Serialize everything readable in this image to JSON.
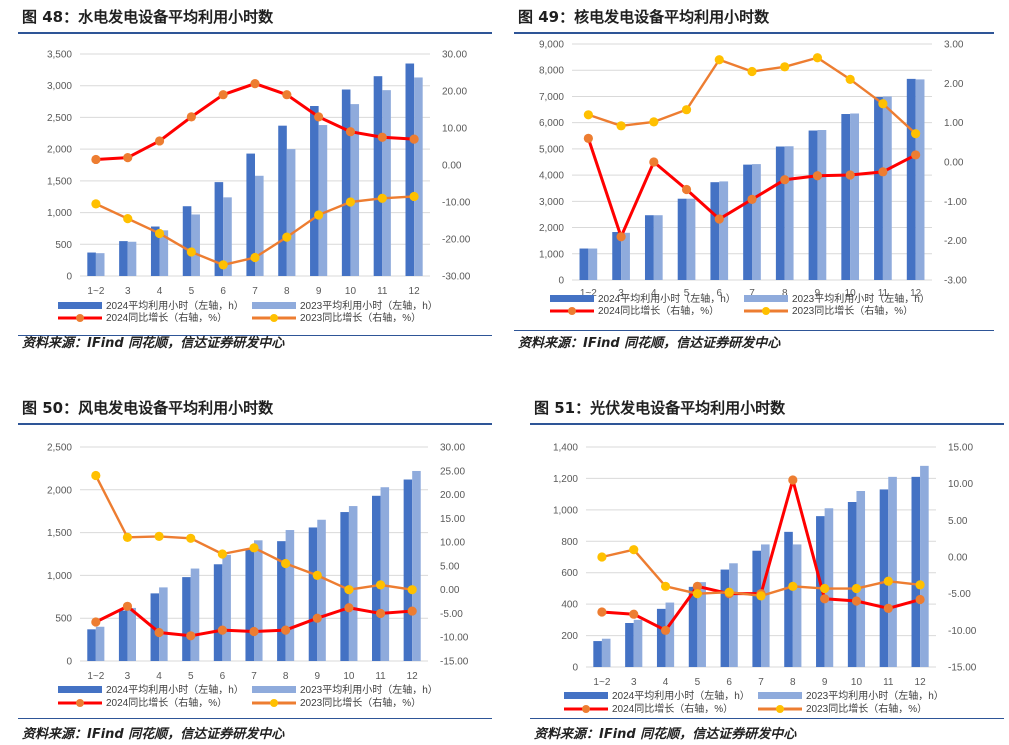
{
  "figures": [
    {
      "title": "图 48：水电发电设备平均利用小时数",
      "source": "资料来源：IFind 同花顺，信达证券研发中心"
    },
    {
      "title": "图 49：核电发电设备平均利用小时数",
      "source": "资料来源：IFind 同花顺，信达证券研发中心"
    },
    {
      "title": "图 50：风电发电设备平均利用小时数",
      "source": "资料来源：IFind 同花顺，信达证券研发中心"
    },
    {
      "title": "图 51：光伏发电设备平均利用小时数",
      "source": "资料来源：IFind 同花顺，信达证券研发中心"
    }
  ],
  "colors": {
    "bar2024": "#4472c4",
    "bar2023": "#8fabdc",
    "line2024": "#ff0000",
    "line2024_marker": "#ed7d31",
    "line2023": "#ed7d31",
    "line2023_marker": "#ffc000"
  },
  "chart_data": [
    {
      "type": "bar",
      "categories": [
        "1~2",
        "3",
        "4",
        "5",
        "6",
        "7",
        "8",
        "9",
        "10",
        "11",
        "12"
      ],
      "series": [
        {
          "name": "2024平均利用小时（左轴，h）",
          "kind": "bar",
          "axis": "left",
          "values": [
            370,
            550,
            780,
            1100,
            1480,
            1930,
            2370,
            2680,
            2940,
            3150,
            3350
          ]
        },
        {
          "name": "2023平均利用小时（左轴，h）",
          "kind": "bar",
          "axis": "left",
          "values": [
            360,
            540,
            720,
            970,
            1240,
            1580,
            2000,
            2380,
            2710,
            2930,
            3130
          ]
        },
        {
          "name": "2024同比增长（右轴，%）",
          "kind": "line",
          "axis": "right",
          "values": [
            1.5,
            2.0,
            6.5,
            13.0,
            19.0,
            22.0,
            19.0,
            13.0,
            9.0,
            7.5,
            7.0
          ]
        },
        {
          "name": "2023同比增长（右轴，%）",
          "kind": "line",
          "axis": "right",
          "values": [
            -10.5,
            -14.5,
            -18.5,
            -23.5,
            -27.0,
            -25.0,
            -19.5,
            -13.5,
            -10.0,
            -9.0,
            -8.5
          ]
        }
      ],
      "yleft": {
        "min": 0,
        "max": 3500,
        "step": 500,
        "labels": [
          "0",
          "500",
          "1,000",
          "1,500",
          "2,000",
          "2,500",
          "3,000",
          "3,500"
        ]
      },
      "yright": {
        "min": -30,
        "max": 30,
        "step": 10,
        "labels": [
          "-30.00",
          "-20.00",
          "-10.00",
          "0.00",
          "10.00",
          "20.00",
          "30.00"
        ]
      }
    },
    {
      "type": "bar",
      "categories": [
        "1~2",
        "3",
        "4",
        "5",
        "6",
        "7",
        "8",
        "9",
        "10",
        "11",
        "12"
      ],
      "series": [
        {
          "name": "2024平均利用小时（左轴，h）",
          "kind": "bar",
          "axis": "left",
          "values": [
            1200,
            1830,
            2470,
            3100,
            3730,
            4400,
            5090,
            5700,
            6330,
            6980,
            7670
          ]
        },
        {
          "name": "2023平均利用小时（左轴，h）",
          "kind": "bar",
          "axis": "left",
          "values": [
            1200,
            1800,
            2470,
            3100,
            3760,
            4420,
            5100,
            5720,
            6350,
            7000,
            7650
          ]
        },
        {
          "name": "2024同比增长（右轴，%）",
          "kind": "line",
          "axis": "right",
          "values": [
            0.6,
            -1.9,
            0.0,
            -0.7,
            -1.45,
            -0.95,
            -0.45,
            -0.35,
            -0.33,
            -0.25,
            0.18
          ]
        },
        {
          "name": "2023同比增长（右轴，%）",
          "kind": "line",
          "axis": "right",
          "values": [
            1.2,
            0.92,
            1.02,
            1.33,
            2.6,
            2.3,
            2.42,
            2.65,
            2.1,
            1.48,
            0.72
          ]
        }
      ],
      "yleft": {
        "min": 0,
        "max": 9000,
        "step": 1000,
        "labels": [
          "0",
          "1,000",
          "2,000",
          "3,000",
          "4,000",
          "5,000",
          "6,000",
          "7,000",
          "8,000",
          "9,000"
        ]
      },
      "yright": {
        "min": -3,
        "max": 3,
        "step": 1,
        "labels": [
          "-3.00",
          "-2.00",
          "-1.00",
          "0.00",
          "1.00",
          "2.00",
          "3.00"
        ]
      }
    },
    {
      "type": "bar",
      "categories": [
        "1~2",
        "3",
        "4",
        "5",
        "6",
        "7",
        "8",
        "9",
        "10",
        "11",
        "12"
      ],
      "series": [
        {
          "name": "2024平均利用小时（左轴，h）",
          "kind": "bar",
          "axis": "left",
          "values": [
            370,
            590,
            790,
            980,
            1130,
            1300,
            1400,
            1560,
            1740,
            1930,
            2120
          ]
        },
        {
          "name": "2023平均利用小时（左轴，h）",
          "kind": "bar",
          "axis": "left",
          "values": [
            400,
            620,
            860,
            1080,
            1240,
            1410,
            1530,
            1650,
            1810,
            2030,
            2220
          ]
        },
        {
          "name": "2024同比增长（右轴，%）",
          "kind": "line",
          "axis": "right",
          "values": [
            -6.8,
            -3.5,
            -9.0,
            -9.7,
            -8.5,
            -8.8,
            -8.5,
            -6.0,
            -3.8,
            -5.0,
            -4.5
          ]
        },
        {
          "name": "2023同比增长（右轴，%）",
          "kind": "line",
          "axis": "right",
          "values": [
            24.0,
            11.0,
            11.2,
            10.8,
            7.5,
            8.8,
            5.5,
            3.0,
            0.0,
            1.0,
            0.0
          ]
        }
      ],
      "yleft": {
        "min": 0,
        "max": 2500,
        "step": 500,
        "labels": [
          "0",
          "500",
          "1,000",
          "1,500",
          "2,000",
          "2,500"
        ]
      },
      "yright": {
        "min": -15,
        "max": 30,
        "step": 5,
        "labels": [
          "-15.00",
          "-10.00",
          "-5.00",
          "0.00",
          "5.00",
          "10.00",
          "15.00",
          "20.00",
          "25.00",
          "30.00"
        ]
      }
    },
    {
      "type": "bar",
      "categories": [
        "1~2",
        "3",
        "4",
        "5",
        "6",
        "7",
        "8",
        "9",
        "10",
        "11",
        "12"
      ],
      "series": [
        {
          "name": "2024平均利用小时（左轴，h）",
          "kind": "bar",
          "axis": "left",
          "values": [
            165,
            280,
            370,
            510,
            620,
            740,
            860,
            960,
            1050,
            1130,
            1210
          ]
        },
        {
          "name": "2023平均利用小时（左轴，h）",
          "kind": "bar",
          "axis": "left",
          "values": [
            180,
            300,
            410,
            540,
            660,
            780,
            780,
            1010,
            1120,
            1210,
            1280
          ]
        },
        {
          "name": "2024同比增长（右轴，%）",
          "kind": "line",
          "axis": "right",
          "values": [
            -7.5,
            -7.8,
            -10.0,
            -4.0,
            -5.0,
            -5.0,
            10.5,
            -5.7,
            -6.0,
            -7.0,
            -5.8
          ]
        },
        {
          "name": "2023同比增长（右轴，%）",
          "kind": "line",
          "axis": "right",
          "values": [
            0.0,
            1.0,
            -4.0,
            -5.0,
            -4.8,
            -5.3,
            -4.0,
            -4.3,
            -4.3,
            -3.3,
            -3.8
          ]
        }
      ],
      "yleft": {
        "min": 0,
        "max": 1400,
        "step": 200,
        "labels": [
          "0",
          "200",
          "400",
          "600",
          "800",
          "1,000",
          "1,200",
          "1,400"
        ]
      },
      "yright": {
        "min": -15,
        "max": 15,
        "step": 5,
        "labels": [
          "-15.00",
          "-10.00",
          "-5.00",
          "0.00",
          "5.00",
          "10.00",
          "15.00"
        ]
      }
    }
  ]
}
